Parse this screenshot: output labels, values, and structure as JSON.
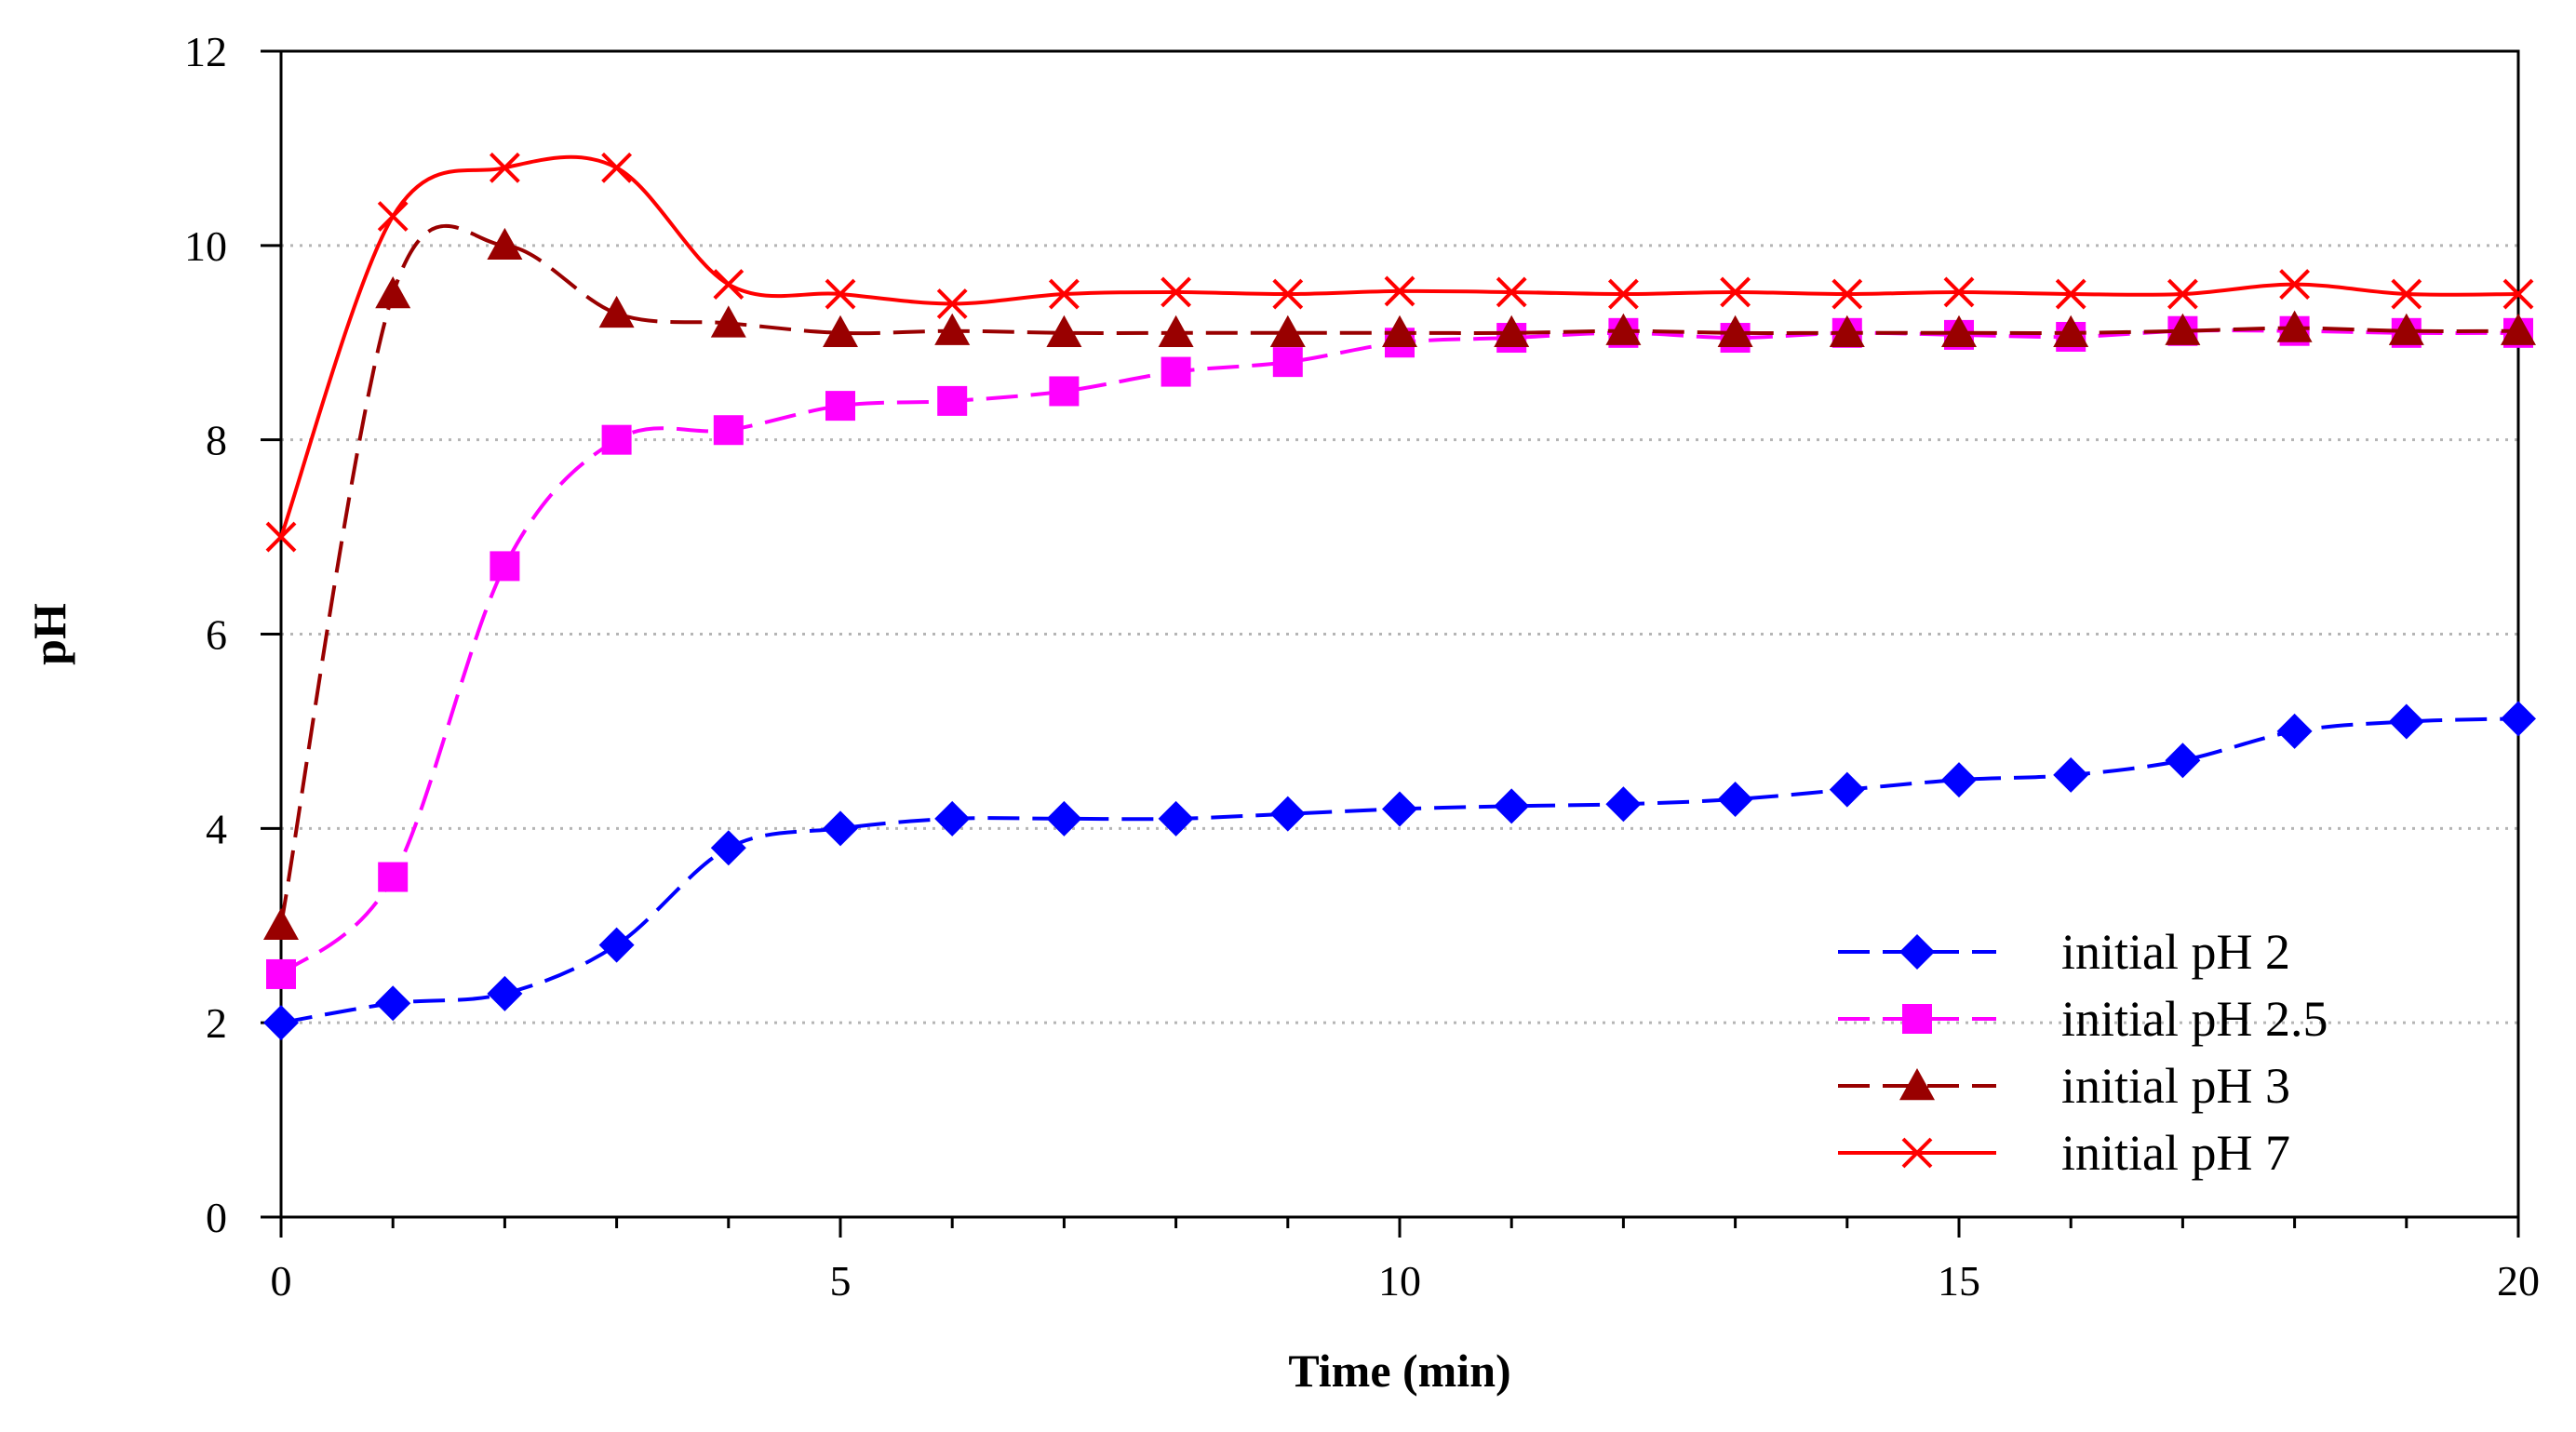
{
  "chart_data": {
    "type": "line",
    "title": "",
    "xlabel": "Time (min)",
    "ylabel": "pH",
    "xlim": [
      0,
      20
    ],
    "ylim": [
      0,
      12
    ],
    "xticks": [
      0,
      5,
      10,
      15,
      20
    ],
    "yticks": [
      0,
      2,
      4,
      6,
      8,
      10,
      12
    ],
    "grid": "horizontal dotted",
    "legend_position": "bottom-right",
    "x": [
      0,
      1,
      2,
      3,
      4,
      5,
      6,
      7,
      8,
      9,
      10,
      11,
      12,
      13,
      14,
      15,
      16,
      17,
      18,
      19,
      20
    ],
    "series": [
      {
        "name": "initial pH 2",
        "color": "#0000ff",
        "marker": "diamond",
        "dash": "long-dash",
        "values": [
          2.0,
          2.2,
          2.3,
          2.8,
          3.8,
          4.0,
          4.1,
          4.1,
          4.1,
          4.15,
          4.2,
          4.23,
          4.25,
          4.3,
          4.4,
          4.5,
          4.55,
          4.7,
          5.0,
          5.1,
          5.13
        ]
      },
      {
        "name": "initial pH 2.5",
        "color": "#ff00ff",
        "marker": "square",
        "dash": "long-dash",
        "values": [
          2.5,
          3.5,
          6.7,
          8.0,
          8.1,
          8.35,
          8.4,
          8.5,
          8.7,
          8.8,
          9.0,
          9.05,
          9.1,
          9.05,
          9.1,
          9.08,
          9.06,
          9.12,
          9.12,
          9.1,
          9.1
        ]
      },
      {
        "name": "initial pH 3",
        "color": "#990000",
        "marker": "triangle",
        "dash": "long-dash",
        "values": [
          3.0,
          9.5,
          10.0,
          9.3,
          9.2,
          9.1,
          9.12,
          9.1,
          9.1,
          9.1,
          9.1,
          9.1,
          9.12,
          9.1,
          9.1,
          9.1,
          9.1,
          9.12,
          9.15,
          9.12,
          9.12
        ]
      },
      {
        "name": "initial pH 7",
        "color": "#ff0000",
        "marker": "x",
        "dash": "solid",
        "values": [
          7.0,
          10.3,
          10.8,
          10.8,
          9.6,
          9.5,
          9.4,
          9.5,
          9.52,
          9.5,
          9.53,
          9.52,
          9.5,
          9.52,
          9.5,
          9.52,
          9.5,
          9.5,
          9.6,
          9.5,
          9.5
        ]
      }
    ]
  }
}
